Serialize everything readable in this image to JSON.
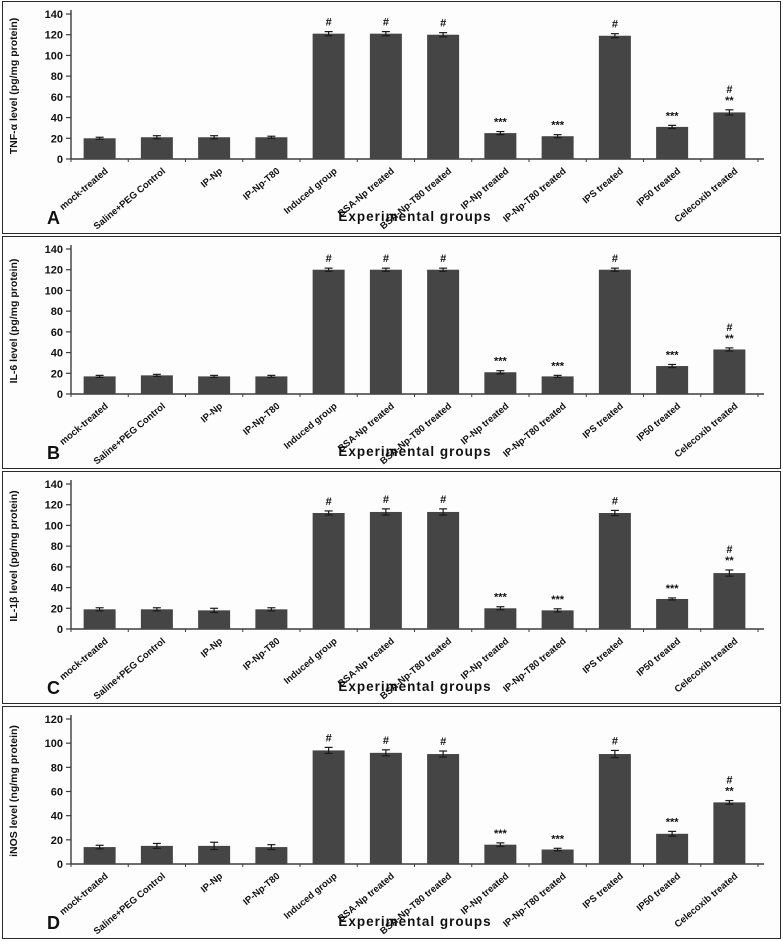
{
  "figure": {
    "xlabel": "Experimental groups",
    "panel_letters": [
      "A",
      "B",
      "C",
      "D"
    ]
  },
  "colors": {
    "bar": "#454545",
    "axis": "#3c3c3c",
    "text": "#111111",
    "error_bar": "#1a1a1a",
    "panel_border": "#2a2a2a",
    "background": "#fdfdfd"
  },
  "chart_data": [
    {
      "type": "bar",
      "panel": "A",
      "title": "",
      "ylabel": "TNF-α level (pg/mg protein)",
      "xlabel": "Experimental groups",
      "ylim": [
        0,
        140
      ],
      "ytick_step": 20,
      "grid": false,
      "legend": "none",
      "categories": [
        "mock-treated",
        "Saline+PEG Control",
        "IP-Np",
        "IP-Np-T80",
        "Induced group",
        "BSA-Np treated",
        "BSA-Np-T80 treated",
        "IP-Np treated",
        "IP-Np-T80 treated",
        "IPS treated",
        "IP50 treated",
        "Celecoxib treated"
      ],
      "values": [
        20,
        21,
        21,
        21,
        121,
        121,
        120,
        25,
        22,
        119,
        31,
        45
      ],
      "errors": [
        1,
        1.5,
        1.5,
        1,
        2,
        2,
        2,
        1.5,
        1.5,
        2,
        1.5,
        2.5
      ],
      "annotations": [
        [],
        [],
        [],
        [],
        [
          "#"
        ],
        [
          "#"
        ],
        [
          "#"
        ],
        [
          "***"
        ],
        [
          "***"
        ],
        [
          "#"
        ],
        [
          "***"
        ],
        [
          "#",
          "**"
        ]
      ]
    },
    {
      "type": "bar",
      "panel": "B",
      "title": "",
      "ylabel": "IL-6 level (pg/mg protein)",
      "xlabel": "Experimental groups",
      "ylim": [
        0,
        140
      ],
      "ytick_step": 20,
      "grid": false,
      "legend": "none",
      "categories": [
        "mock-treated",
        "Saline+PEG Control",
        "IP-Np",
        "IP-Np-T80",
        "Induced group",
        "BSA-Np treated",
        "BSA-Np-T80 treated",
        "IP-Np treated",
        "IP-Np-T80 treated",
        "IPS treated",
        "IP50 treated",
        "Celecoxib treated"
      ],
      "values": [
        17,
        18,
        17,
        17,
        120,
        120,
        120,
        21,
        17,
        120,
        27,
        43
      ],
      "errors": [
        1,
        1,
        1,
        1,
        1.5,
        1.5,
        1.5,
        1.5,
        1,
        1.5,
        1.5,
        1.5
      ],
      "annotations": [
        [],
        [],
        [],
        [],
        [
          "#"
        ],
        [
          "#"
        ],
        [
          "#"
        ],
        [
          "***"
        ],
        [
          "***"
        ],
        [
          "#"
        ],
        [
          "***"
        ],
        [
          "#",
          "**"
        ]
      ]
    },
    {
      "type": "bar",
      "panel": "C",
      "title": "",
      "ylabel": "IL-1β level (pg/mg protein)",
      "xlabel": "Experimental groups",
      "ylim": [
        0,
        140
      ],
      "ytick_step": 20,
      "grid": false,
      "legend": "none",
      "categories": [
        "mock-treated",
        "Saline+PEG Control",
        "IP-Np",
        "IP-Np-T80",
        "Induced group",
        "BSA-Np treated",
        "BSA-Np-T80 treated",
        "IP-Np treated",
        "IP-Np-T80 treated",
        "IPS treated",
        "IP50 treated",
        "Celecoxib treated"
      ],
      "values": [
        19,
        19,
        18,
        19,
        112,
        113,
        113,
        20,
        18,
        112,
        29,
        54
      ],
      "errors": [
        1.5,
        1.5,
        2,
        1.5,
        2,
        3,
        3,
        1.5,
        1.5,
        2.5,
        1,
        3
      ],
      "annotations": [
        [],
        [],
        [],
        [],
        [
          "#"
        ],
        [
          "#"
        ],
        [
          "#"
        ],
        [
          "***"
        ],
        [
          "***"
        ],
        [
          "#"
        ],
        [
          "***"
        ],
        [
          "#",
          "**"
        ]
      ]
    },
    {
      "type": "bar",
      "panel": "D",
      "title": "",
      "ylabel": "iNOS level (ng/mg protein)",
      "xlabel": "Experimental groups",
      "ylim": [
        0,
        120
      ],
      "ytick_step": 20,
      "grid": false,
      "legend": "none",
      "categories": [
        "mock-treated",
        "Saline+PEG Control",
        "IP-Np",
        "IP-Np-T80",
        "Induced group",
        "BSA-Np treated",
        "BSA-Np-T80 treated",
        "IP-Np treated",
        "IP-Np-T80 treated",
        "IPS treated",
        "IP50 treated",
        "Celecoxib treated"
      ],
      "values": [
        14,
        15,
        15,
        14,
        94,
        92,
        91,
        16,
        12,
        91,
        25,
        51
      ],
      "errors": [
        1.5,
        2,
        3,
        2,
        2.5,
        2.5,
        2.5,
        1.5,
        1,
        3,
        2,
        1.5
      ],
      "annotations": [
        [],
        [],
        [],
        [],
        [
          "#"
        ],
        [
          "#"
        ],
        [
          "#"
        ],
        [
          "***"
        ],
        [
          "***"
        ],
        [
          "#"
        ],
        [
          "***"
        ],
        [
          "#",
          "**"
        ]
      ]
    }
  ]
}
